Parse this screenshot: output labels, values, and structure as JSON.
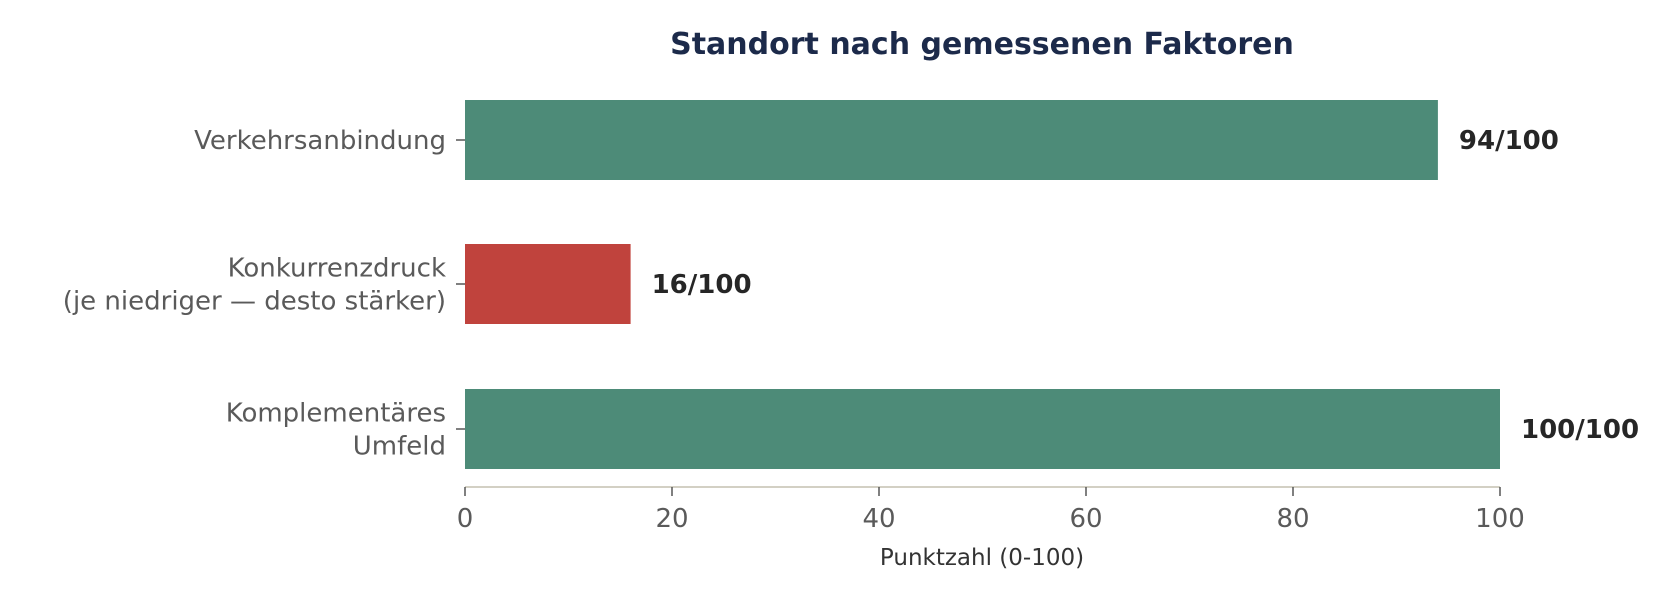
{
  "chart_data": {
    "type": "bar",
    "orientation": "horizontal",
    "title": "Standort nach gemessenen Faktoren",
    "xlabel": "Punktzahl (0-100)",
    "ylabel": "",
    "xlim": [
      0,
      100
    ],
    "xticks": [
      0,
      20,
      40,
      60,
      80,
      100
    ],
    "grid": false,
    "legend": "none",
    "categories": [
      [
        "Verkehrsanbindung"
      ],
      [
        "Konkurrenzdruck",
        "(je niedriger — desto stärker)"
      ],
      [
        "Komplementäres",
        "Umfeld"
      ]
    ],
    "values": [
      94,
      16,
      100
    ],
    "value_labels": [
      "94/100",
      "16/100",
      "100/100"
    ],
    "colors": [
      "#4d8b78",
      "#c0433d",
      "#4d8b78"
    ],
    "axis_color": "#d3d0c4"
  }
}
